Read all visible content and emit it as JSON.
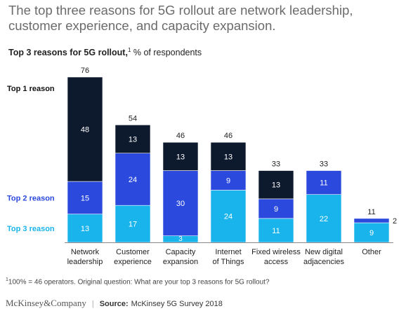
{
  "headline": "The top three reasons for 5G rollout are network leadership, customer experience, and capacity expansion.",
  "subtitle": {
    "bold": "Top 3 reasons for 5G rollout,",
    "sup": "1",
    "rest": " % of respondents"
  },
  "note": {
    "sup": "1",
    "text": "100% = 46 operators. Original question: What are your top 3 reasons for 5G rollout?"
  },
  "footer": {
    "brand": "McKinsey&Company",
    "source_label": "Source:",
    "source_text": "McKinsey 5G Survey 2018"
  },
  "colors": {
    "top1": "#0d1a2e",
    "top2": "#2b49dc",
    "top3": "#1ab4ec",
    "top1_label": "#111111",
    "top2_label": "#2b49dc",
    "top3_label": "#1ab4ec"
  },
  "chart_data": {
    "type": "bar",
    "stacked": true,
    "categories": [
      [
        "Network",
        "leadership"
      ],
      [
        "Customer",
        "experience"
      ],
      [
        "Capacity",
        "expansion"
      ],
      [
        "Internet",
        "of Things"
      ],
      [
        "Fixed wireless",
        "access"
      ],
      [
        "New digital",
        "adjacencies"
      ],
      [
        "Other"
      ]
    ],
    "series": [
      {
        "name": "Top 3 reason",
        "values": [
          13,
          17,
          3,
          24,
          11,
          22,
          9
        ]
      },
      {
        "name": "Top 2 reason",
        "values": [
          15,
          24,
          30,
          9,
          9,
          11,
          2
        ]
      },
      {
        "name": "Top 1 reason",
        "values": [
          48,
          13,
          13,
          13,
          13,
          0,
          0
        ]
      }
    ],
    "totals": [
      76,
      54,
      46,
      46,
      33,
      33,
      11
    ],
    "ylim": [
      0,
      76
    ]
  }
}
